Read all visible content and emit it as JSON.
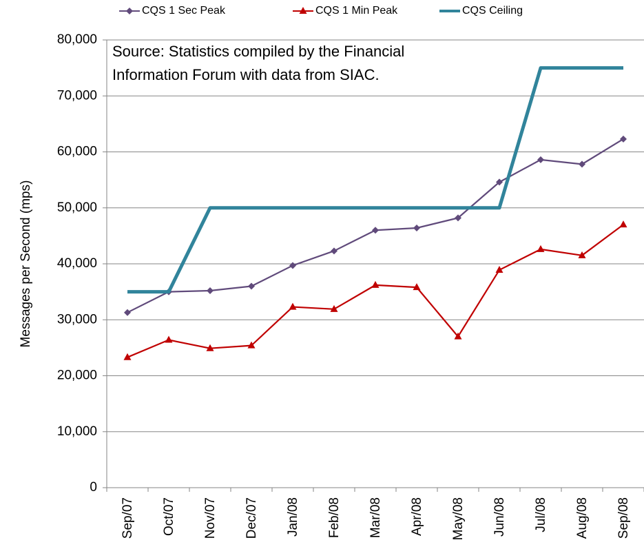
{
  "chart_data": {
    "type": "line",
    "ylabel": "Messages per Second (mps)",
    "annotation": [
      "Source: Statistics compiled by the Financial",
      "Information Forum with data from SIAC."
    ],
    "categories": [
      "Sep/07",
      "Oct/07",
      "Nov/07",
      "Dec/07",
      "Jan/08",
      "Feb/08",
      "Mar/08",
      "Apr/08",
      "May/08",
      "Jun/08",
      "Jul/08",
      "Aug/08",
      "Sep/08"
    ],
    "series": [
      {
        "name": "CQS 1 Sec Peak",
        "color": "#604a7b",
        "marker": "diamond",
        "values": [
          31300,
          35000,
          35200,
          36000,
          39700,
          42300,
          46000,
          46400,
          48200,
          54600,
          58600,
          57800,
          62300
        ]
      },
      {
        "name": "CQS 1 Min Peak",
        "color": "#c00000",
        "marker": "triangle",
        "values": [
          23300,
          26400,
          24900,
          25400,
          32300,
          31900,
          36200,
          35800,
          27000,
          38900,
          42600,
          41500,
          47000
        ]
      },
      {
        "name": "CQS Ceiling",
        "color": "#31849b",
        "values": [
          35000,
          35000,
          50000,
          50000,
          50000,
          50000,
          50000,
          50000,
          50000,
          50000,
          75000,
          75000,
          75000
        ]
      }
    ],
    "ylim": [
      0,
      80000
    ],
    "yticks": [
      0,
      {
        "value": 10000,
        "label": "10,000"
      },
      {
        "value": 20000,
        "label": "20,000"
      },
      {
        "value": 30000,
        "label": "30,000"
      },
      {
        "value": 40000,
        "label": "40,000"
      },
      {
        "value": 50000,
        "label": "50,000"
      },
      {
        "value": 60000,
        "label": "60,000"
      },
      {
        "value": 70000,
        "label": "70,000"
      },
      {
        "value": 80000,
        "label": "80,000"
      }
    ],
    "grid": true,
    "legend": "top"
  }
}
